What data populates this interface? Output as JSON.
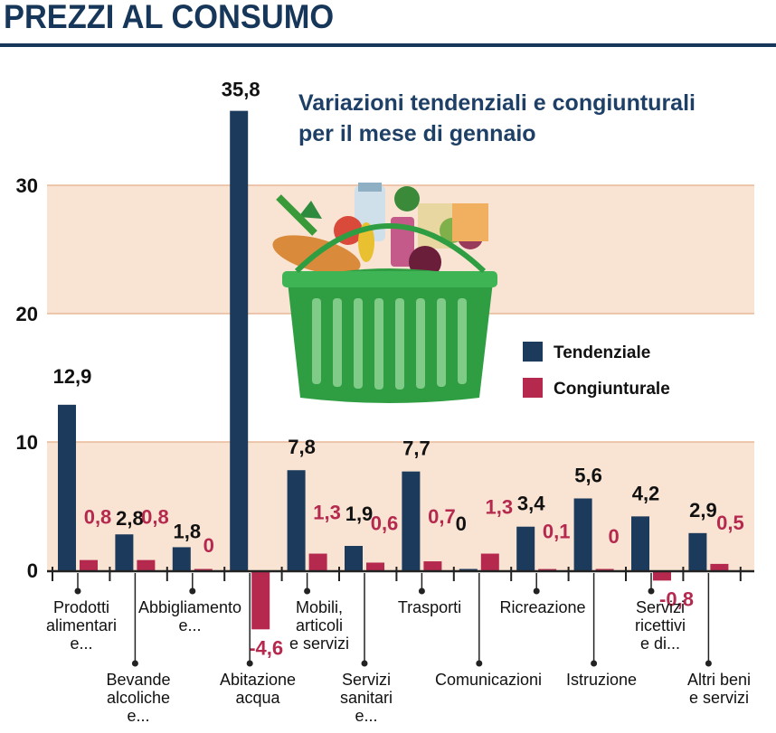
{
  "header": {
    "title": "PREZZI AL CONSUMO"
  },
  "chart_data": {
    "type": "bar",
    "title": "Variazioni tendenziali e congiunturali per il mese di gennaio",
    "title_lines": [
      "Variazioni tendenziali e congiunturali",
      "per il mese di gennaio"
    ],
    "ylim": [
      -5,
      37
    ],
    "yticks": [
      0,
      10,
      20,
      30
    ],
    "ytick_labels": [
      "0",
      "10",
      "20",
      "30"
    ],
    "grid": false,
    "legend_position": "right",
    "categories": [
      "Prodotti alimentari e...",
      "Bevande alcoliche e...",
      "Abbigliamento e...",
      "Abitazione acqua",
      "Mobili, articoli e servizi",
      "Servizi sanitari e...",
      "Trasporti",
      "Comunicazioni",
      "Ricreazione",
      "Istruzione",
      "Servizi ricettivi e di...",
      "Altri beni e servizi"
    ],
    "category_lines": [
      [
        "Prodotti",
        "alimentari",
        "e..."
      ],
      [
        "Bevande",
        "alcoliche",
        "e..."
      ],
      [
        "Abbigliamento",
        "e..."
      ],
      [
        "Abitazione",
        "acqua"
      ],
      [
        "Mobili,",
        "articoli",
        "e servizi"
      ],
      [
        "Servizi",
        "sanitari",
        "e..."
      ],
      [
        "Trasporti"
      ],
      [
        "Comunicazioni"
      ],
      [
        "Ricreazione"
      ],
      [
        "Istruzione"
      ],
      [
        "Servizi",
        "ricettivi",
        "e di..."
      ],
      [
        "Altri beni",
        "e servizi"
      ]
    ],
    "series": [
      {
        "name": "Tendenziale",
        "color": "#1b3a5c",
        "values": [
          12.9,
          2.8,
          1.8,
          35.8,
          7.8,
          1.9,
          7.7,
          0,
          3.4,
          5.6,
          4.2,
          2.9
        ],
        "labels": [
          "12,9",
          "2,8",
          "1,8",
          "35,8",
          "7,8",
          "1,9",
          "7,7",
          "0",
          "3,4",
          "5,6",
          "4,2",
          "2,9"
        ]
      },
      {
        "name": "Congiunturale",
        "color": "#b5294e",
        "values": [
          0.8,
          0.8,
          0,
          -4.6,
          1.3,
          0.6,
          0.7,
          1.3,
          0.1,
          0,
          -0.8,
          0.5
        ],
        "labels": [
          "0,8",
          "0,8",
          "0",
          "-4,6",
          "1,3",
          "0,6",
          "0,7",
          "1,3",
          "0,1",
          "0",
          "-0,8",
          "0,5"
        ]
      }
    ],
    "colors": {
      "band": "#f9e4d3",
      "axis": "#222222",
      "title": "#16375a"
    }
  }
}
